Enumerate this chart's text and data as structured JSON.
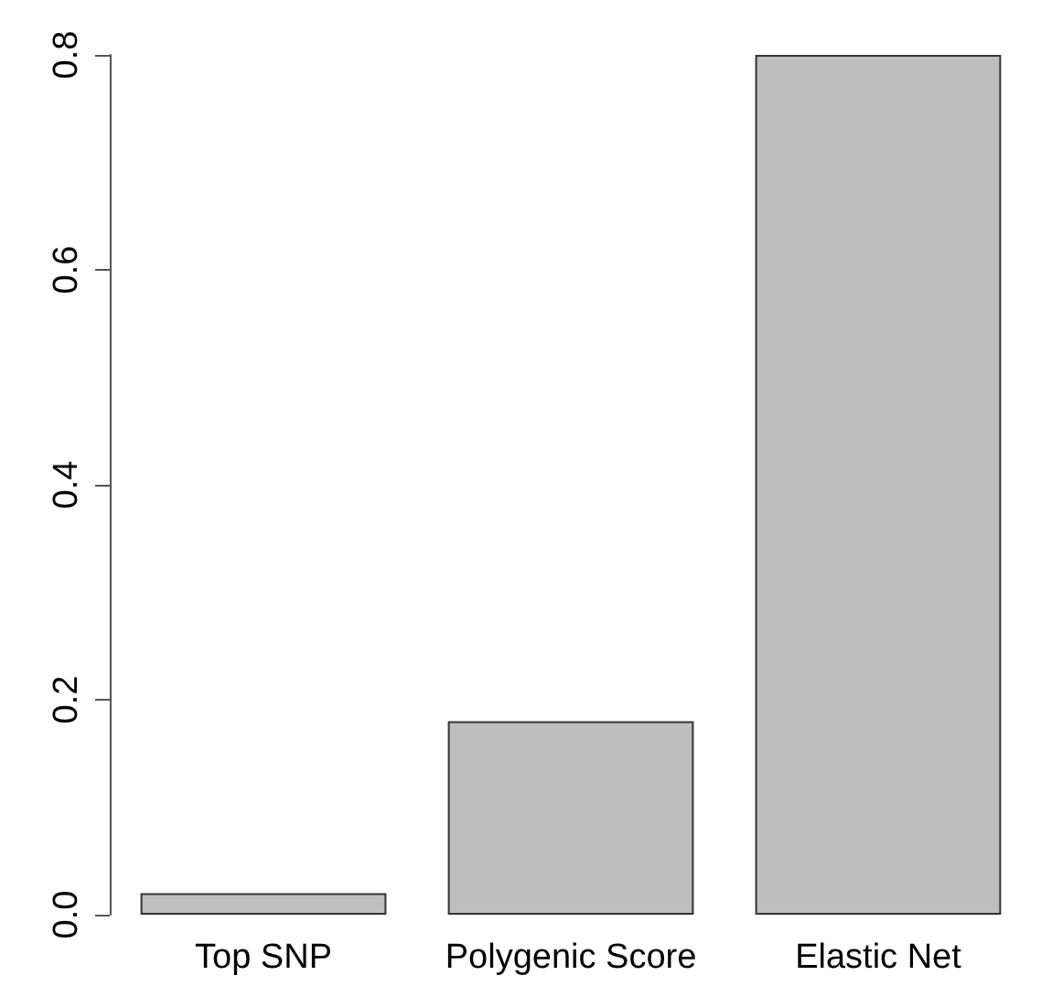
{
  "chart_data": {
    "type": "bar",
    "categories": [
      "Top SNP",
      "Polygenic Score",
      "Elastic Net"
    ],
    "values": [
      0.02,
      0.18,
      0.8
    ],
    "color": "#bebebe",
    "ylim": [
      0,
      0.8
    ],
    "yticks": [
      {
        "value": 0,
        "label": "0.0"
      },
      {
        "value": 0.2,
        "label": "0.2"
      },
      {
        "value": 0.4,
        "label": "0.4"
      },
      {
        "value": 0.6,
        "label": "0.6"
      },
      {
        "value": 0.8,
        "label": "0.8"
      }
    ],
    "grid": false
  }
}
